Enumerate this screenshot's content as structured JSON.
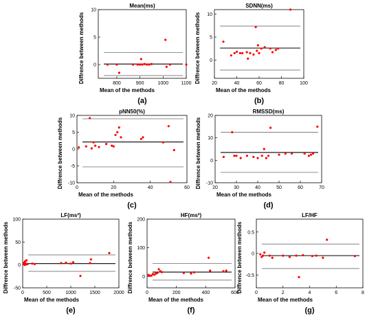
{
  "figure": {
    "point_color": "#ff0000",
    "mean_line_color": "#000000",
    "limit_line_color": "#808080"
  },
  "chart_data": [
    {
      "id": "a",
      "type": "scatter",
      "title": "Mean(ms)",
      "xlabel": "Mean of the methods",
      "ylabel": "Diffrence between methods",
      "caption": "(a)",
      "xlim": [
        720,
        1100
      ],
      "ylim": [
        -2.5,
        10
      ],
      "xticks": [
        800,
        900,
        1000,
        1100
      ],
      "yticks": [
        0,
        5,
        10
      ],
      "mean": 0.1,
      "upper_loa": 2.2,
      "lower_loa": -2.0,
      "points": [
        [
          760,
          0.0
        ],
        [
          800,
          0.0
        ],
        [
          810,
          -1.5
        ],
        [
          870,
          0.0
        ],
        [
          890,
          0.0
        ],
        [
          900,
          0.0
        ],
        [
          905,
          1.0
        ],
        [
          910,
          0.0
        ],
        [
          920,
          0.1
        ],
        [
          930,
          0.0
        ],
        [
          940,
          0.0
        ],
        [
          950,
          0.1
        ],
        [
          1010,
          4.5
        ],
        [
          1015,
          -0.4
        ],
        [
          1030,
          0.0
        ],
        [
          1100,
          0.0
        ]
      ]
    },
    {
      "id": "b",
      "type": "scatter",
      "title": "SDNN(ms)",
      "xlabel": "Mean of the methods",
      "ylabel": "Diffrence between methods",
      "caption": "(b)",
      "xlim": [
        20,
        100
      ],
      "ylim": [
        -4,
        11
      ],
      "xticks": [
        20,
        40,
        60,
        80,
        100
      ],
      "yticks": [
        0,
        5,
        10
      ],
      "mean": 2.6,
      "upper_loa": 7.4,
      "lower_loa": -2.2,
      "points": [
        [
          28,
          4.0
        ],
        [
          35,
          1.0
        ],
        [
          38,
          1.5
        ],
        [
          40,
          1.8
        ],
        [
          43,
          1.5
        ],
        [
          45,
          1.5
        ],
        [
          49,
          1.7
        ],
        [
          50,
          0.3
        ],
        [
          52,
          1.5
        ],
        [
          55,
          1.2
        ],
        [
          57,
          7.2
        ],
        [
          58,
          2.0
        ],
        [
          59,
          3.2
        ],
        [
          60,
          1.5
        ],
        [
          62,
          2.5
        ],
        [
          65,
          2.8
        ],
        [
          70,
          2.5
        ],
        [
          72,
          1.7
        ],
        [
          75,
          2.2
        ],
        [
          77,
          2.5
        ],
        [
          88,
          11.0
        ]
      ]
    },
    {
      "id": "c",
      "type": "scatter",
      "title": "pNN50(%)",
      "xlabel": "Mean of the methods",
      "ylabel": "Diffrence between methods",
      "caption": "(c)",
      "xlim": [
        0,
        60
      ],
      "ylim": [
        -10,
        10
      ],
      "xticks": [
        0,
        20,
        40,
        60
      ],
      "yticks": [
        -10,
        -5,
        0,
        5,
        10
      ],
      "mean": 2.1,
      "upper_loa": 9.0,
      "lower_loa": -5.3,
      "points": [
        [
          1,
          0.5
        ],
        [
          5,
          0.8
        ],
        [
          7,
          9.2
        ],
        [
          8,
          0.2
        ],
        [
          9,
          2.0
        ],
        [
          10,
          1.0
        ],
        [
          12,
          0.6
        ],
        [
          16,
          1.5
        ],
        [
          19,
          1.0
        ],
        [
          20,
          0.8
        ],
        [
          21,
          4.2
        ],
        [
          22,
          5.0
        ],
        [
          23,
          6.4
        ],
        [
          24,
          3.5
        ],
        [
          35,
          3.0
        ],
        [
          36,
          3.5
        ],
        [
          47,
          2.0
        ],
        [
          50,
          6.8
        ],
        [
          51,
          -9.8
        ],
        [
          53,
          -0.3
        ]
      ]
    },
    {
      "id": "d",
      "type": "scatter",
      "title": "RMSSD(ms)",
      "xlabel": "Mean of the methods",
      "ylabel": "Diffrence between methods",
      "caption": "(d)",
      "xlim": [
        20,
        70
      ],
      "ylim": [
        -10,
        20
      ],
      "xticks": [
        20,
        30,
        40,
        50,
        60,
        70
      ],
      "yticks": [
        -10,
        0,
        10,
        20
      ],
      "mean": 3.5,
      "upper_loa": 12.5,
      "lower_loa": -5.4,
      "points": [
        [
          24,
          1.5
        ],
        [
          28,
          12.5
        ],
        [
          29,
          2.0
        ],
        [
          30,
          2.0
        ],
        [
          32,
          1.0
        ],
        [
          35,
          2.0
        ],
        [
          38,
          1.5
        ],
        [
          40,
          1.0
        ],
        [
          42,
          2.0
        ],
        [
          43,
          5.0
        ],
        [
          44,
          1.0
        ],
        [
          45,
          2.0
        ],
        [
          46,
          14.5
        ],
        [
          50,
          2.5
        ],
        [
          53,
          3.0
        ],
        [
          56,
          3.0
        ],
        [
          62,
          3.0
        ],
        [
          64,
          2.0
        ],
        [
          65,
          2.5
        ],
        [
          66,
          3.0
        ],
        [
          68,
          15.0
        ]
      ]
    },
    {
      "id": "e",
      "type": "scatter",
      "title": "LF(ms²)",
      "xlabel": "Mean of the methods",
      "ylabel": "Diffrence between methods",
      "caption": "(e)",
      "xlim": [
        0,
        2000
      ],
      "ylim": [
        -50,
        100
      ],
      "xticks": [
        0,
        500,
        1000,
        1500,
        2000
      ],
      "yticks": [
        -50,
        0,
        50,
        100
      ],
      "mean": 3,
      "upper_loa": 22,
      "lower_loa": -14,
      "points": [
        [
          20,
          2
        ],
        [
          30,
          5
        ],
        [
          40,
          0
        ],
        [
          50,
          8
        ],
        [
          60,
          3
        ],
        [
          70,
          1
        ],
        [
          80,
          10
        ],
        [
          100,
          2
        ],
        [
          200,
          3
        ],
        [
          250,
          2
        ],
        [
          800,
          4
        ],
        [
          900,
          5
        ],
        [
          1000,
          3
        ],
        [
          1050,
          6
        ],
        [
          1200,
          -24
        ],
        [
          1400,
          4
        ],
        [
          1420,
          12
        ],
        [
          1800,
          26
        ]
      ]
    },
    {
      "id": "f",
      "type": "scatter",
      "title": "HF(ms²)",
      "xlabel": "Mean of the methods",
      "ylabel": "Diffrence between methods",
      "caption": "(f)",
      "xlim": [
        0,
        600
      ],
      "ylim": [
        -40,
        200
      ],
      "xticks": [
        0,
        200,
        400,
        600
      ],
      "yticks": [
        0,
        100,
        200
      ],
      "mean": 15,
      "upper_loa": 45,
      "lower_loa": -13,
      "points": [
        [
          10,
          5
        ],
        [
          20,
          2
        ],
        [
          30,
          3
        ],
        [
          40,
          8
        ],
        [
          50,
          6
        ],
        [
          60,
          10
        ],
        [
          70,
          12
        ],
        [
          80,
          25
        ],
        [
          90,
          18
        ],
        [
          100,
          15
        ],
        [
          250,
          12
        ],
        [
          300,
          10
        ],
        [
          320,
          14
        ],
        [
          420,
          65
        ],
        [
          430,
          20
        ],
        [
          520,
          18
        ],
        [
          540,
          20
        ]
      ]
    },
    {
      "id": "g",
      "type": "scatter",
      "title": "LF/HF",
      "xlabel": "Mean of the methods",
      "ylabel": "Diffrence between methods",
      "caption": "(g)",
      "xlim": [
        0,
        8
      ],
      "ylim": [
        -0.8,
        0.8
      ],
      "xticks": [
        0,
        2,
        4,
        6,
        8
      ],
      "yticks": [
        -0.5,
        0,
        0.5
      ],
      "mean": -0.05,
      "upper_loa": 0.22,
      "lower_loa": -0.35,
      "points": [
        [
          0.3,
          -0.02
        ],
        [
          0.4,
          -0.08
        ],
        [
          0.5,
          -0.05
        ],
        [
          0.6,
          0.02
        ],
        [
          1.0,
          -0.05
        ],
        [
          1.2,
          -0.1
        ],
        [
          2.0,
          -0.05
        ],
        [
          2.5,
          -0.08
        ],
        [
          3.0,
          -0.05
        ],
        [
          3.2,
          -0.55
        ],
        [
          3.5,
          -0.04
        ],
        [
          4.2,
          -0.06
        ],
        [
          4.5,
          -0.05
        ],
        [
          5.0,
          -0.1
        ],
        [
          5.3,
          0.32
        ],
        [
          7.4,
          -0.06
        ]
      ]
    }
  ]
}
